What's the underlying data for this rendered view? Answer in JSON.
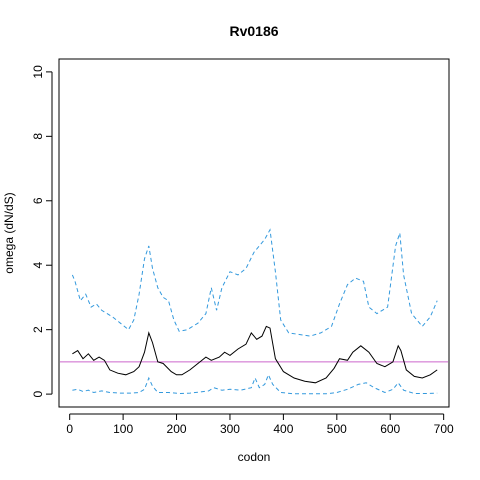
{
  "chart_data": {
    "type": "line",
    "title": "Rv0186",
    "xlabel": "codon",
    "ylabel": "omega (dN/dS)",
    "xlim": [
      -20,
      710
    ],
    "ylim": [
      -0.4,
      10.4
    ],
    "xticks": [
      0,
      100,
      200,
      300,
      400,
      500,
      600,
      700
    ],
    "yticks": [
      0,
      2,
      4,
      6,
      8,
      10
    ],
    "reference_line": {
      "y": 1,
      "color": "#cc66cc"
    },
    "series": [
      {
        "style": "solid",
        "color": "#000000",
        "x": [
          5,
          15,
          25,
          35,
          45,
          55,
          65,
          75,
          90,
          105,
          120,
          130,
          140,
          148,
          155,
          165,
          175,
          190,
          200,
          210,
          225,
          240,
          255,
          265,
          280,
          290,
          300,
          315,
          330,
          340,
          350,
          360,
          368,
          375,
          385,
          400,
          420,
          440,
          460,
          480,
          495,
          505,
          520,
          530,
          545,
          560,
          575,
          590,
          605,
          615,
          620,
          630,
          645,
          660,
          675,
          688
        ],
        "y": [
          1.25,
          1.35,
          1.1,
          1.25,
          1.05,
          1.15,
          1.05,
          0.75,
          0.65,
          0.6,
          0.7,
          0.85,
          1.3,
          1.9,
          1.6,
          1.0,
          0.95,
          0.7,
          0.6,
          0.6,
          0.75,
          0.95,
          1.15,
          1.05,
          1.15,
          1.3,
          1.2,
          1.4,
          1.55,
          1.9,
          1.7,
          1.8,
          2.1,
          2.05,
          1.1,
          0.7,
          0.5,
          0.4,
          0.35,
          0.5,
          0.8,
          1.1,
          1.05,
          1.3,
          1.5,
          1.3,
          0.95,
          0.85,
          1.0,
          1.5,
          1.35,
          0.75,
          0.55,
          0.5,
          0.6,
          0.75
        ]
      },
      {
        "style": "dashed",
        "color": "#3399dd",
        "x": [
          5,
          10,
          20,
          30,
          40,
          50,
          60,
          70,
          80,
          95,
          110,
          120,
          130,
          140,
          148,
          155,
          165,
          175,
          185,
          195,
          205,
          220,
          240,
          255,
          265,
          275,
          285,
          300,
          315,
          330,
          345,
          355,
          365,
          375,
          385,
          395,
          410,
          430,
          450,
          470,
          490,
          505,
          520,
          535,
          550,
          560,
          575,
          595,
          610,
          618,
          625,
          640,
          660,
          675,
          688
        ],
        "y": [
          3.7,
          3.5,
          2.9,
          3.1,
          2.7,
          2.8,
          2.6,
          2.5,
          2.4,
          2.2,
          2.0,
          2.3,
          3.1,
          4.2,
          4.6,
          3.9,
          3.3,
          3.0,
          2.9,
          2.3,
          1.95,
          2.0,
          2.2,
          2.5,
          3.3,
          2.6,
          3.3,
          3.8,
          3.7,
          3.9,
          4.4,
          4.6,
          4.8,
          5.1,
          3.8,
          2.3,
          1.9,
          1.85,
          1.8,
          1.9,
          2.1,
          2.8,
          3.4,
          3.6,
          3.5,
          2.7,
          2.5,
          2.7,
          4.6,
          5.0,
          3.7,
          2.5,
          2.1,
          2.4,
          2.9
        ]
      },
      {
        "style": "dashed",
        "color": "#3399dd",
        "x": [
          5,
          15,
          25,
          35,
          45,
          60,
          75,
          95,
          115,
          130,
          140,
          148,
          155,
          165,
          185,
          205,
          225,
          245,
          260,
          270,
          285,
          300,
          320,
          340,
          347,
          355,
          365,
          372,
          380,
          395,
          420,
          450,
          480,
          500,
          520,
          540,
          555,
          570,
          590,
          605,
          615,
          625,
          645,
          665,
          688
        ],
        "y": [
          0.12,
          0.15,
          0.08,
          0.12,
          0.05,
          0.1,
          0.05,
          0.03,
          0.03,
          0.05,
          0.15,
          0.5,
          0.25,
          0.05,
          0.05,
          0.02,
          0.03,
          0.07,
          0.1,
          0.2,
          0.12,
          0.15,
          0.12,
          0.2,
          0.5,
          0.2,
          0.3,
          0.6,
          0.3,
          0.05,
          0.01,
          0.01,
          0.01,
          0.05,
          0.15,
          0.3,
          0.35,
          0.2,
          0.05,
          0.15,
          0.35,
          0.12,
          0.02,
          0.02,
          0.03
        ]
      }
    ]
  }
}
